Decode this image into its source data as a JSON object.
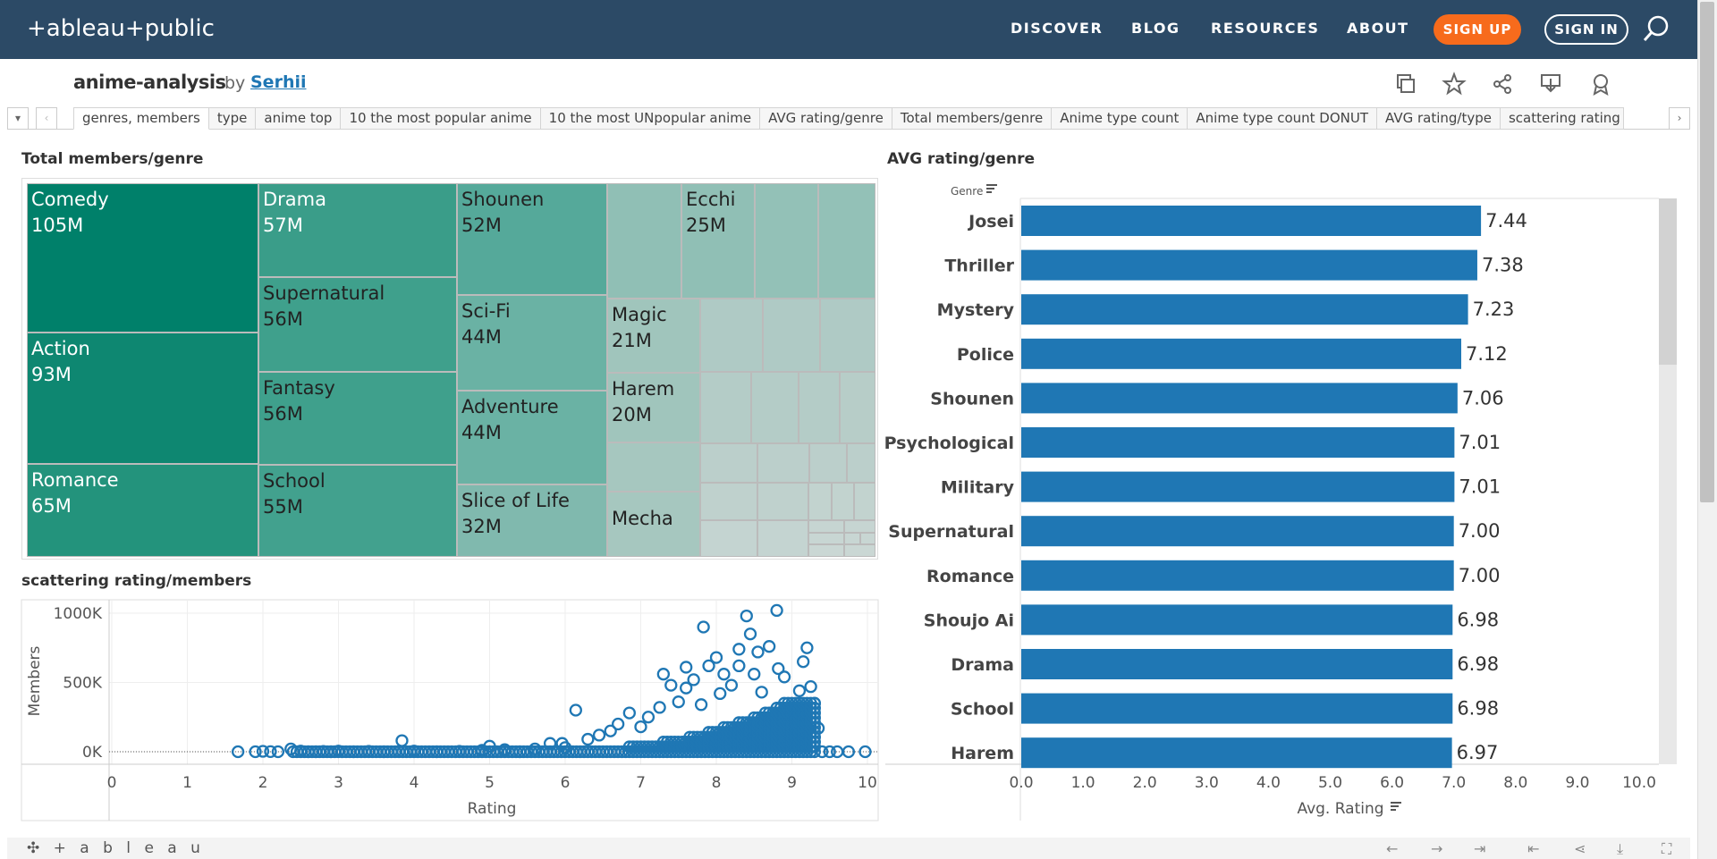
{
  "nav": {
    "logo": "+ableau+public",
    "links": [
      "DISCOVER",
      "BLOG",
      "RESOURCES",
      "ABOUT"
    ],
    "signup": "SIGN UP",
    "signin": "SIGN IN"
  },
  "viz": {
    "title": "anime-analysis",
    "by": "by",
    "author": "Serhii"
  },
  "tabs": [
    "genres, members",
    "type",
    "anime top",
    "10 the most popular anime",
    "10 the most UNpopular anime",
    "AVG rating/genre",
    "Total members/genre",
    "Anime type count",
    "Anime type count DONUT",
    "AVG rating/type",
    "scattering rating"
  ],
  "treemap": {
    "title": "Total members/genre",
    "cells": [
      {
        "label": "Comedy",
        "value": "105M"
      },
      {
        "label": "Action",
        "value": "93M"
      },
      {
        "label": "Romance",
        "value": "65M"
      },
      {
        "label": "Drama",
        "value": "57M"
      },
      {
        "label": "Supernatural",
        "value": "56M"
      },
      {
        "label": "Fantasy",
        "value": "56M"
      },
      {
        "label": "School",
        "value": "55M"
      },
      {
        "label": "Shounen",
        "value": "52M"
      },
      {
        "label": "Sci-Fi",
        "value": "44M"
      },
      {
        "label": "Adventure",
        "value": "44M"
      },
      {
        "label": "Slice of Life",
        "value": "32M"
      },
      {
        "label": "Ecchi",
        "value": "25M"
      },
      {
        "label": "Magic",
        "value": "21M"
      },
      {
        "label": "Harem",
        "value": "20M"
      },
      {
        "label": "Mecha",
        "value": ""
      }
    ],
    "colors": {
      "dark": "#00806a",
      "mid": "#3ba593",
      "light": "#8fbfb4",
      "pale": "#b6c9c4"
    }
  },
  "chart_data": [
    {
      "type": "bar",
      "title": "AVG rating/genre",
      "header_label": "Genre",
      "xlabel": "Avg. Rating",
      "xlim": [
        0,
        10
      ],
      "ticks": [
        "0.0",
        "1.0",
        "2.0",
        "3.0",
        "4.0",
        "5.0",
        "6.0",
        "7.0",
        "8.0",
        "9.0",
        "10.0"
      ],
      "categories": [
        "Josei",
        "Thriller",
        "Mystery",
        "Police",
        "Shounen",
        "Psychological",
        "Military",
        "Supernatural",
        "Romance",
        "Shoujo Ai",
        "Drama",
        "School",
        "Harem"
      ],
      "values": [
        7.44,
        7.38,
        7.23,
        7.12,
        7.06,
        7.01,
        7.01,
        7.0,
        7.0,
        6.98,
        6.98,
        6.98,
        6.97
      ],
      "labels": [
        "7.44",
        "7.38",
        "7.23",
        "7.12",
        "7.06",
        "7.01",
        "7.01",
        "7.00",
        "7.00",
        "6.98",
        "6.98",
        "6.98",
        "6.97"
      ],
      "color": "#1f77b4"
    },
    {
      "type": "scatter",
      "title": "scattering rating/members",
      "xlabel": "Rating",
      "ylabel": "Members",
      "xlim": [
        0,
        10
      ],
      "ylim": [
        -100000,
        1000000
      ],
      "xticks": [
        "0",
        "1",
        "2",
        "3",
        "4",
        "5",
        "6",
        "7",
        "8",
        "9",
        "10"
      ],
      "yticks": [
        "1000K",
        "500K",
        "0K"
      ],
      "color": "#1f77b4",
      "points": [
        [
          1.67,
          0
        ],
        [
          1.9,
          0
        ],
        [
          2.0,
          3000
        ],
        [
          2.1,
          1000
        ],
        [
          2.2,
          0
        ],
        [
          2.37,
          20000
        ],
        [
          2.5,
          5000
        ],
        [
          2.6,
          0
        ],
        [
          2.7,
          0
        ],
        [
          2.8,
          2000
        ],
        [
          2.9,
          0
        ],
        [
          3.0,
          5000
        ],
        [
          3.2,
          0
        ],
        [
          3.4,
          3000
        ],
        [
          3.6,
          0
        ],
        [
          3.8,
          2000
        ],
        [
          3.84,
          80000
        ],
        [
          4.0,
          5000
        ],
        [
          4.3,
          0
        ],
        [
          4.6,
          3000
        ],
        [
          4.9,
          10000
        ],
        [
          5.0,
          40000
        ],
        [
          5.2,
          15000
        ],
        [
          5.4,
          0
        ],
        [
          5.6,
          20000
        ],
        [
          5.8,
          60000
        ],
        [
          5.96,
          60000
        ],
        [
          6.0,
          30000
        ],
        [
          6.14,
          300000
        ],
        [
          6.3,
          90000
        ],
        [
          6.45,
          120000
        ],
        [
          6.6,
          150000
        ],
        [
          6.7,
          200000
        ],
        [
          6.85,
          280000
        ],
        [
          7.0,
          180000
        ],
        [
          7.1,
          250000
        ],
        [
          7.25,
          320000
        ],
        [
          7.3,
          560000
        ],
        [
          7.4,
          480000
        ],
        [
          7.5,
          360000
        ],
        [
          7.6,
          460000
        ],
        [
          7.6,
          610000
        ],
        [
          7.7,
          520000
        ],
        [
          7.8,
          340000
        ],
        [
          7.83,
          900000
        ],
        [
          7.9,
          620000
        ],
        [
          8.0,
          680000
        ],
        [
          8.05,
          420000
        ],
        [
          8.1,
          560000
        ],
        [
          8.2,
          480000
        ],
        [
          8.3,
          620000
        ],
        [
          8.3,
          740000
        ],
        [
          8.4,
          980000
        ],
        [
          8.45,
          850000
        ],
        [
          8.5,
          560000
        ],
        [
          8.55,
          720000
        ],
        [
          8.6,
          430000
        ],
        [
          8.7,
          760000
        ],
        [
          8.8,
          1020000
        ],
        [
          8.82,
          600000
        ],
        [
          8.9,
          540000
        ],
        [
          9.0,
          300000
        ],
        [
          9.1,
          440000
        ],
        [
          9.15,
          650000
        ],
        [
          9.2,
          750000
        ],
        [
          9.25,
          470000
        ],
        [
          9.3,
          350000
        ],
        [
          9.35,
          170000
        ],
        [
          9.4,
          0
        ],
        [
          9.5,
          0
        ],
        [
          9.6,
          0
        ],
        [
          9.75,
          0
        ],
        [
          9.97,
          0
        ]
      ]
    }
  ]
}
